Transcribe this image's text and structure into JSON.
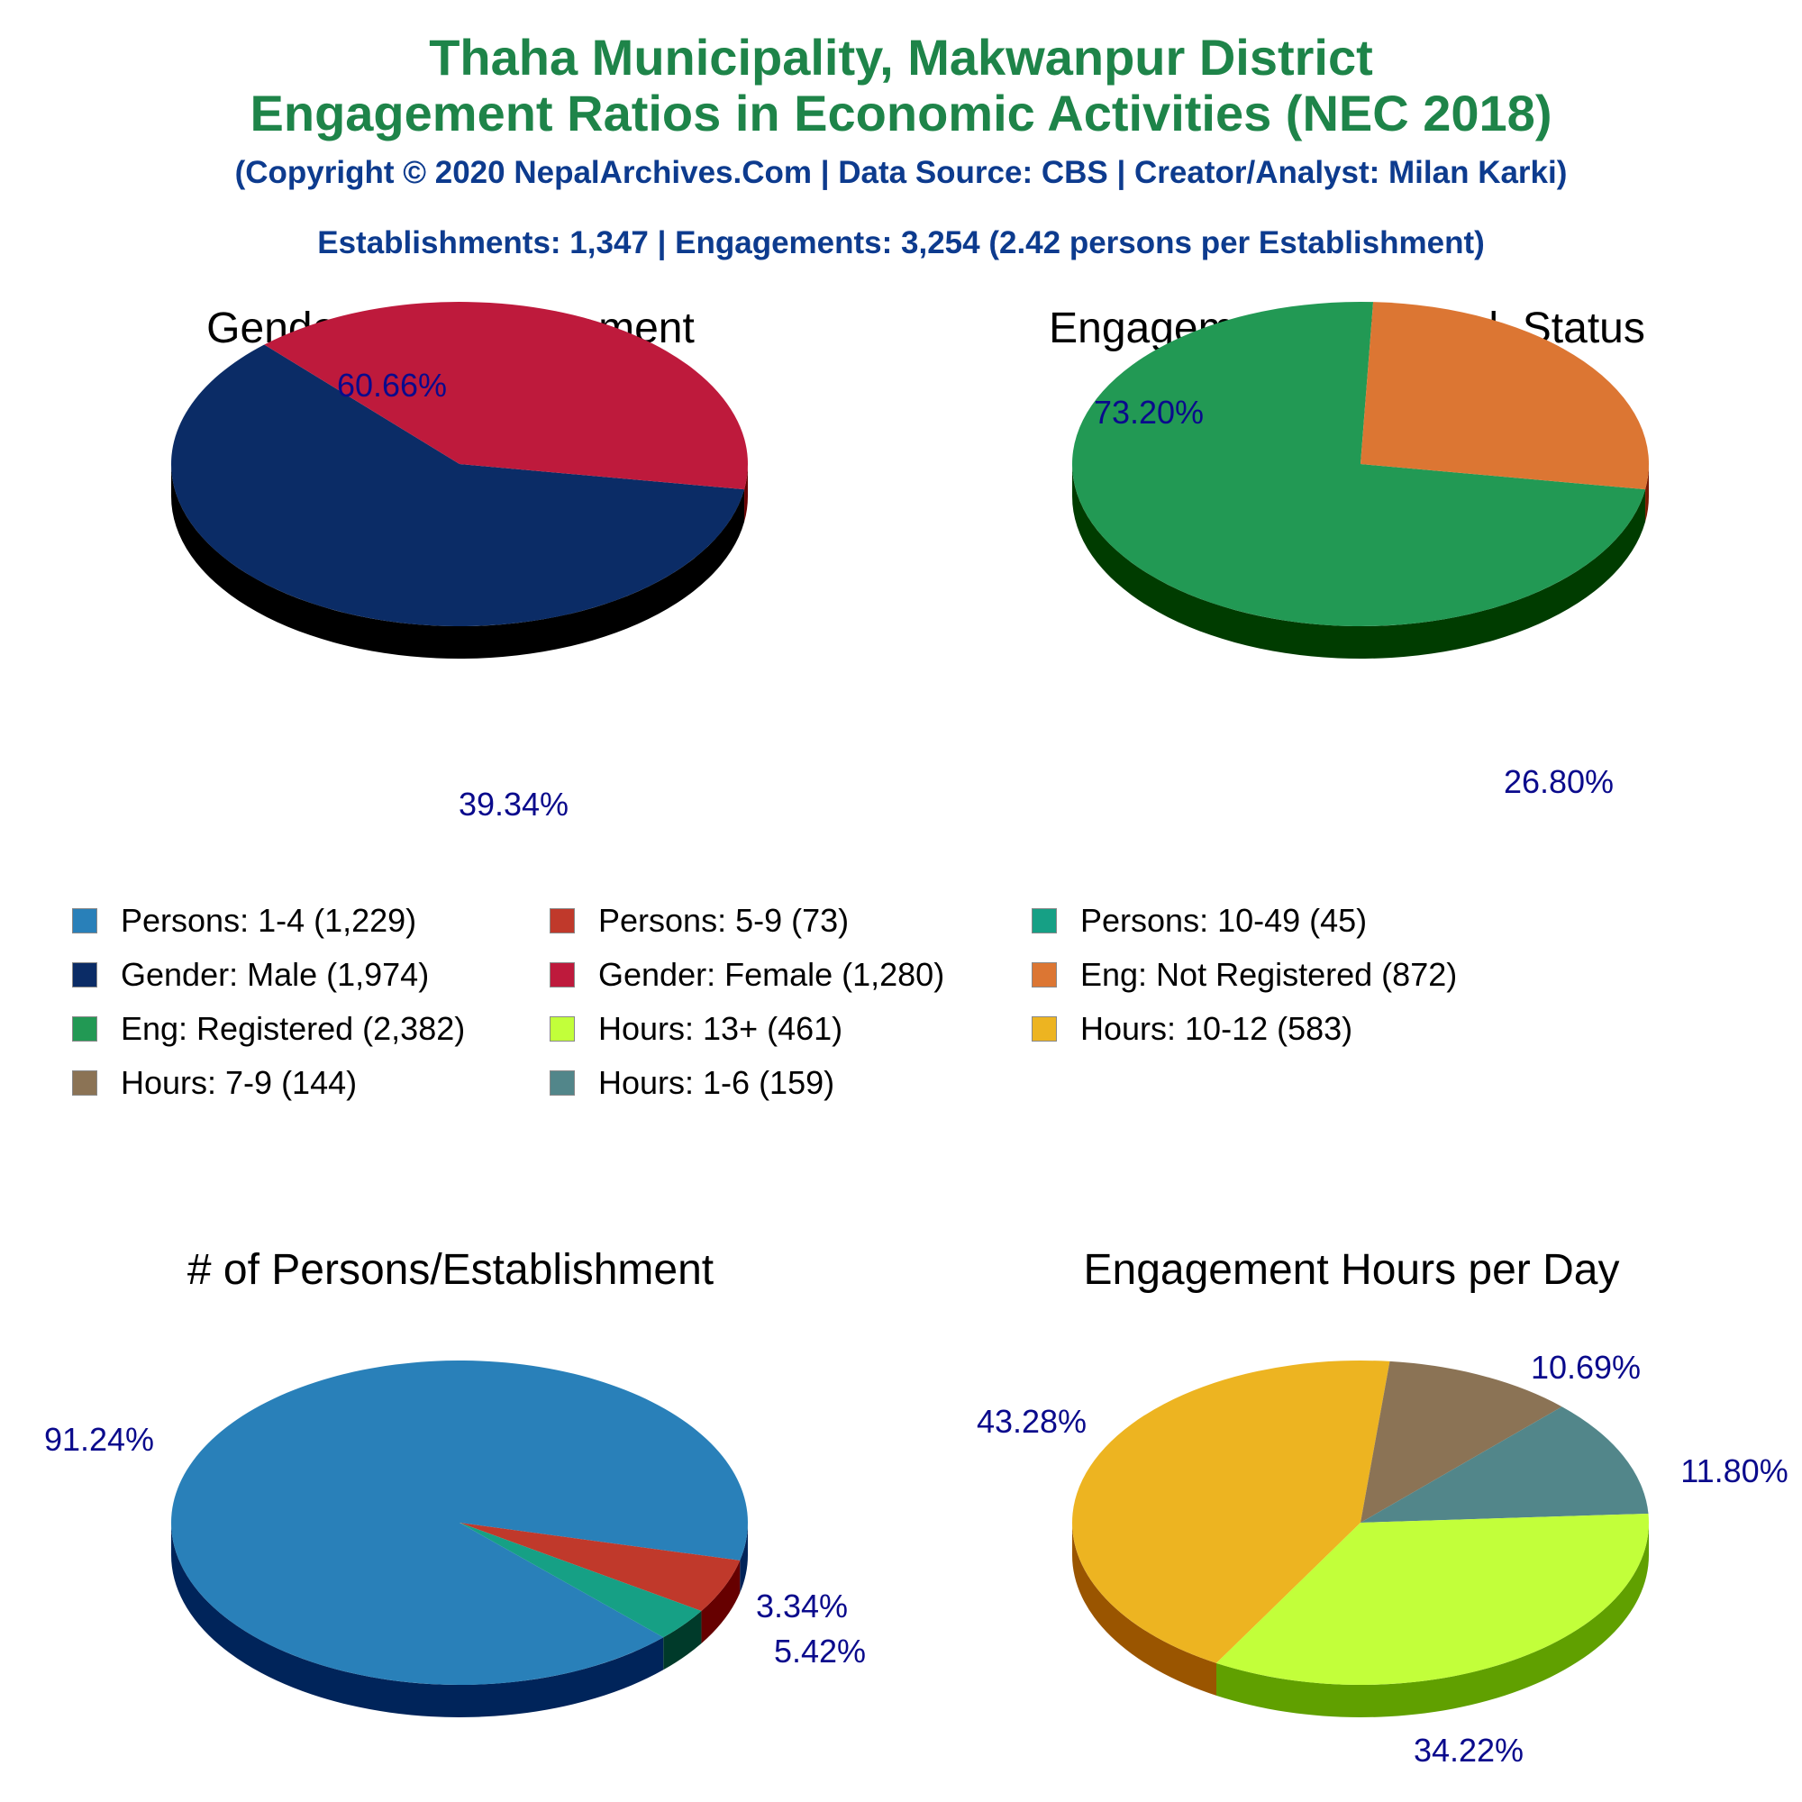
{
  "header": {
    "title_line1": "Thaha Municipality, Makwanpur District",
    "title_line2": "Engagement Ratios in Economic Activities (NEC 2018)",
    "copyright": "(Copyright © 2020 NepalArchives.Com | Data Source: CBS | Creator/Analyst: Milan Karki)",
    "summary": "Establishments: 1,347 | Engagements: 3,254 (2.42 persons per Establishment)",
    "title_color": "#1e8449",
    "subtitle_color": "#0d3b8e"
  },
  "label_color": "#0a0a8c",
  "legend": [
    {
      "label": "Persons: 1-4 (1,229)",
      "color": "#2980b9"
    },
    {
      "label": "Persons: 5-9 (73)",
      "color": "#c0392b"
    },
    {
      "label": "Persons: 10-49 (45)",
      "color": "#16a085"
    },
    {
      "label": "Gender: Male (1,974)",
      "color": "#0b2c66"
    },
    {
      "label": "Gender: Female (1,280)",
      "color": "#be1a3c"
    },
    {
      "label": "Eng: Not Registered (872)",
      "color": "#dc7633"
    },
    {
      "label": "Eng: Registered (2,382)",
      "color": "#229954"
    },
    {
      "label": "Hours: 13+ (461)",
      "color": "#c2ff3a"
    },
    {
      "label": "Hours: 10-12 (583)",
      "color": "#edb421"
    },
    {
      "label": "Hours: 7-9 (144)",
      "color": "#8b7355"
    },
    {
      "label": "Hours: 1-6 (159)",
      "color": "#52868a"
    }
  ],
  "chart_data": [
    {
      "type": "pie",
      "title": "Genderwise Engagement",
      "slices": [
        {
          "label": "Gender: Male",
          "value": 60.66,
          "display": "60.66%",
          "color": "#0b2c66",
          "side": "#000000"
        },
        {
          "label": "Gender: Female",
          "value": 39.34,
          "display": "39.34%",
          "color": "#be1a3c",
          "side": "#660000"
        }
      ]
    },
    {
      "type": "pie",
      "title": "Engagement with Regd. Status",
      "slices": [
        {
          "label": "Eng: Registered",
          "value": 73.2,
          "display": "73.20%",
          "color": "#229954",
          "side": "#003c00"
        },
        {
          "label": "Eng: Not Registered",
          "value": 26.8,
          "display": "26.80%",
          "color": "#dc7633",
          "side": "#7a1a00"
        }
      ]
    },
    {
      "type": "pie",
      "title": "# of Persons/Establishment",
      "slices": [
        {
          "label": "Persons: 1-4",
          "value": 91.24,
          "display": "91.24%",
          "color": "#2980b9",
          "side": "#00245a"
        },
        {
          "label": "Persons: 5-9",
          "value": 5.42,
          "display": "5.42%",
          "color": "#c0392b",
          "side": "#660000"
        },
        {
          "label": "Persons: 10-49",
          "value": 3.34,
          "display": "3.34%",
          "color": "#16a085",
          "side": "#003a2a"
        }
      ]
    },
    {
      "type": "pie",
      "title": "Engagement Hours per Day",
      "slices": [
        {
          "label": "Hours: 10-12",
          "value": 43.28,
          "display": "43.28%",
          "color": "#edb421",
          "side": "#9a5500"
        },
        {
          "label": "Hours: 7-9",
          "value": 10.69,
          "display": "10.69%",
          "color": "#8b7355",
          "side": "#3a2a15"
        },
        {
          "label": "Hours: 1-6",
          "value": 11.8,
          "display": "11.80%",
          "color": "#52868a",
          "side": "#1a3a3d"
        },
        {
          "label": "Hours: 13+",
          "value": 34.22,
          "display": "34.22%",
          "color": "#c2ff3a",
          "side": "#60a000"
        }
      ]
    }
  ]
}
